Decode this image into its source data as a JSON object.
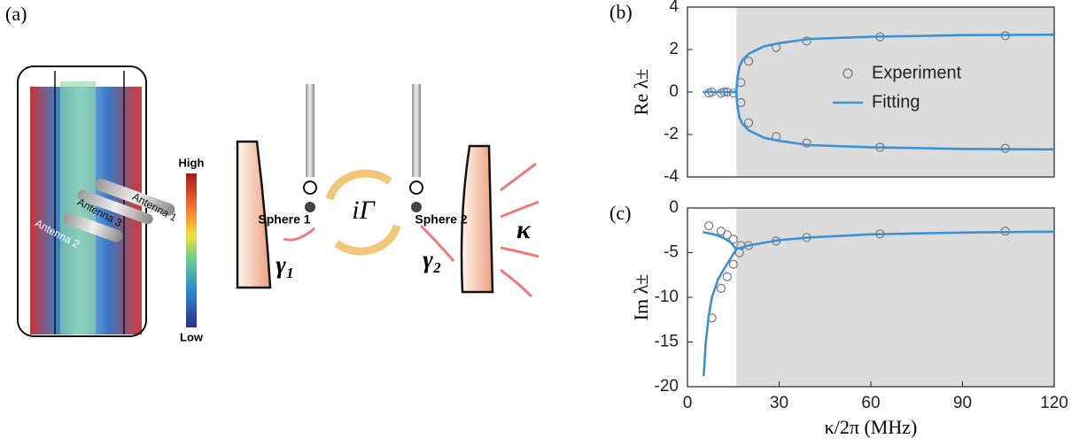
{
  "panel_label": "(a)",
  "diagram": {
    "colorbar_high": "High",
    "colorbar_low": "Low",
    "antenna_1": "Antenna 1",
    "antenna_2": "Antenna 2",
    "antenna_3": "Antenna 3",
    "sphere_1": "Sphere 1",
    "sphere_2": "Sphere 2",
    "coupling": "iΓ",
    "gamma_1": "γ₁",
    "gamma_2": "γ₂",
    "kappa": "κ"
  },
  "chart_data": [
    {
      "type": "line",
      "label": "(b)",
      "ylabel": "Re λ±",
      "xlim": [
        0,
        120
      ],
      "ylim": [
        -4,
        4
      ],
      "yticks": [
        -4,
        -2,
        0,
        2,
        4
      ],
      "shaded_xrange": [
        16,
        120
      ],
      "legend": "upper right",
      "series": [
        {
          "name": "Experiment",
          "type": "scatter",
          "color": "#777777",
          "x": [
            7,
            8,
            11,
            12,
            13,
            15,
            17.5,
            17.5,
            20,
            20,
            29,
            29,
            39,
            39,
            63,
            63,
            104,
            104
          ],
          "values": [
            -0.05,
            0,
            -0.05,
            0,
            0,
            -0.05,
            0.45,
            -0.5,
            1.45,
            -1.45,
            2.1,
            -2.1,
            2.4,
            -2.4,
            2.6,
            -2.6,
            2.65,
            -2.65
          ]
        },
        {
          "name": "Fitting",
          "type": "line",
          "color": "#3a92d4",
          "x": [
            5,
            10,
            15,
            16,
            16.3,
            17,
            18,
            20,
            25,
            30,
            40,
            60,
            90,
            120
          ],
          "values": [
            0,
            0,
            0,
            0,
            0.6,
            1.2,
            1.5,
            1.8,
            2.15,
            2.3,
            2.5,
            2.6,
            2.68,
            2.7
          ]
        },
        {
          "type": "line",
          "color": "#3a92d4",
          "x": [
            16,
            16.3,
            17,
            18,
            20,
            25,
            30,
            40,
            60,
            90,
            120
          ],
          "values": [
            0,
            -0.6,
            -1.2,
            -1.5,
            -1.8,
            -2.15,
            -2.3,
            -2.5,
            -2.6,
            -2.68,
            -2.7
          ]
        }
      ]
    },
    {
      "type": "line",
      "label": "(c)",
      "ylabel": "Im λ±",
      "xlabel": "κ/2π (MHz)",
      "xlim": [
        0,
        120
      ],
      "xticks": [
        0,
        30,
        60,
        90,
        120
      ],
      "ylim": [
        -20,
        0
      ],
      "yticks": [
        -20,
        -15,
        -10,
        -5,
        0
      ],
      "shaded_xrange": [
        16,
        120
      ],
      "series": [
        {
          "type": "scatter",
          "color": "#777777",
          "x": [
            7,
            8,
            11,
            11,
            13,
            13,
            15,
            15,
            17,
            17.5,
            20,
            29,
            39,
            63,
            104
          ],
          "values": [
            -2,
            -12.3,
            -2.6,
            -9,
            -3,
            -7.7,
            -3.5,
            -6.3,
            -5,
            -4.2,
            -4.2,
            -3.7,
            -3.3,
            -2.9,
            -2.6
          ]
        },
        {
          "type": "line",
          "color": "#3a92d4",
          "x": [
            5,
            8,
            10,
            12,
            14,
            16,
            20,
            25,
            30,
            40,
            60,
            90,
            120
          ],
          "values": [
            -2.7,
            -2.9,
            -3.1,
            -3.4,
            -3.8,
            -4.6,
            -4.2,
            -3.9,
            -3.6,
            -3.3,
            -2.95,
            -2.75,
            -2.65
          ]
        },
        {
          "type": "line",
          "color": "#3a92d4",
          "x": [
            5.3,
            6,
            7,
            8,
            10,
            12,
            14,
            16
          ],
          "values": [
            -18.8,
            -15,
            -12,
            -10,
            -8,
            -6.8,
            -5.7,
            -4.6
          ]
        }
      ]
    }
  ]
}
